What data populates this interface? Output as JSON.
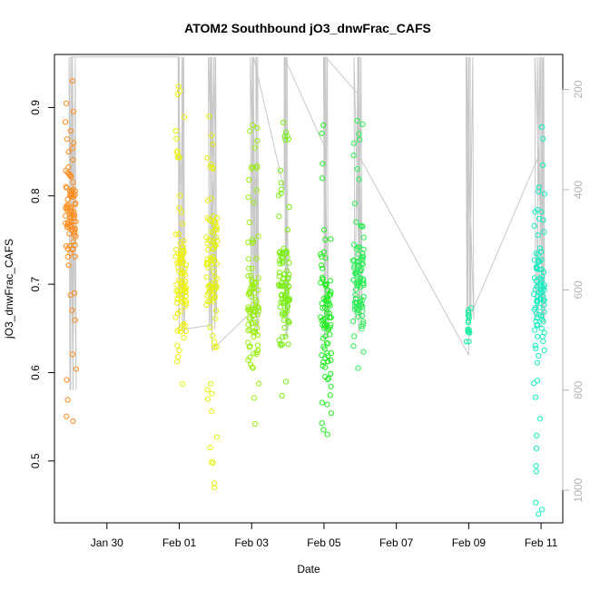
{
  "chart_data": {
    "type": "scatter",
    "title": "ATOM2 Southbound jO3_dnwFrac_CAFS",
    "xlabel": "Date",
    "ylabel": "jO3_dnwFrac_CAFS",
    "x_ticks": [
      "Jan 30",
      "Feb 01",
      "Feb 03",
      "Feb 05",
      "Feb 07",
      "Feb 09",
      "Feb 11"
    ],
    "x_tick_days": [
      -2,
      0,
      2,
      4,
      6,
      8,
      10
    ],
    "xlim_days": [
      -3.45,
      10.6
    ],
    "y_ticks": [
      "0.5",
      "0.6",
      "0.7",
      "0.8",
      "0.9"
    ],
    "ylim": [
      0.43,
      0.96
    ],
    "right_axis": {
      "label": "",
      "ticks": [
        "200",
        "400",
        "600",
        "800",
        "1000"
      ],
      "lim": [
        130,
        1065
      ],
      "inverted": true,
      "color": "#b3b3b3"
    },
    "grid": false,
    "marker": "open-circle",
    "flight_clusters": [
      {
        "day": -3.0,
        "color": "#ff8c1a",
        "y_min": 0.545,
        "y_max": 0.93,
        "center": 0.78
      },
      {
        "day": 0.05,
        "color": "#eef20a",
        "y_min": 0.587,
        "y_max": 0.924,
        "center": 0.71
      },
      {
        "day": 0.9,
        "color": "#e6f20a",
        "y_min": 0.47,
        "y_max": 0.89,
        "center": 0.72
      },
      {
        "day": 2.05,
        "color": "#9aee12",
        "y_min": 0.542,
        "y_max": 0.88,
        "center": 0.665
      },
      {
        "day": 2.9,
        "color": "#7aee14",
        "y_min": 0.574,
        "y_max": 0.883,
        "center": 0.695
      },
      {
        "day": 4.05,
        "color": "#22ee22",
        "y_min": 0.53,
        "y_max": 0.88,
        "center": 0.67
      },
      {
        "day": 4.95,
        "color": "#2aee55",
        "y_min": 0.605,
        "y_max": 0.885,
        "center": 0.705
      },
      {
        "day": 8.0,
        "color": "#1aeea0",
        "y_min": 0.635,
        "y_max": 0.673,
        "center": 0.648
      },
      {
        "day": 9.95,
        "color": "#14eec0",
        "y_min": 0.44,
        "y_max": 0.878,
        "center": 0.69
      }
    ],
    "altitude_trace": {
      "color": "#c8c8c8",
      "days": [
        -3.0,
        -3.0,
        0.0,
        0.0,
        0.9,
        0.9,
        0.9,
        2.05,
        2.05,
        2.9,
        2.9,
        4.05,
        4.05,
        4.95,
        4.95,
        8.0,
        8.0,
        9.95,
        9.95
      ],
      "altitude": [
        800,
        135,
        135,
        680,
        670,
        135,
        720,
        640,
        135,
        400,
        135,
        320,
        135,
        210,
        330,
        730,
        660,
        330,
        135
      ]
    }
  }
}
